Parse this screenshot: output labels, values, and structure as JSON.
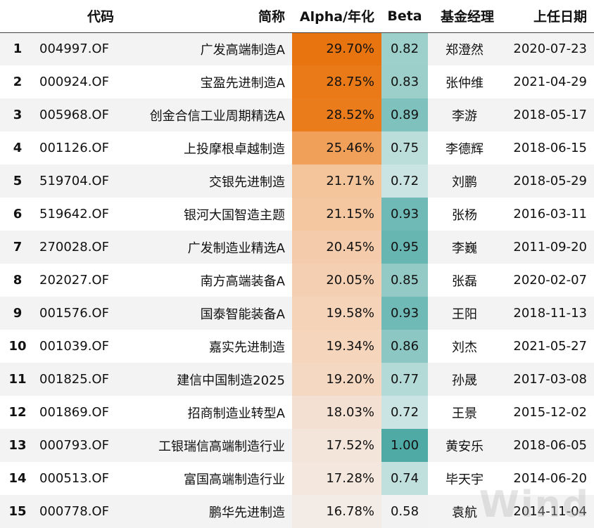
{
  "headers": {
    "code": "代码",
    "name": "简称",
    "alpha": "Alpha/年化",
    "beta": "Beta",
    "manager": "基金经理",
    "start_date": "上任日期"
  },
  "rows": [
    {
      "idx": "1",
      "code": "004997.OF",
      "name": "广发高端制造A",
      "alpha": "29.70%",
      "beta": "0.82",
      "manager": "郑澄然",
      "start_date": "2020-07-23",
      "alpha_color": "#e8740f",
      "beta_color": "#9dcfcb"
    },
    {
      "idx": "2",
      "code": "000924.OF",
      "name": "宝盈先进制造A",
      "alpha": "28.75%",
      "beta": "0.83",
      "manager": "张仲维",
      "start_date": "2021-04-29",
      "alpha_color": "#ea7a18",
      "beta_color": "#9ccfca"
    },
    {
      "idx": "3",
      "code": "005968.OF",
      "name": "创金合信工业周期精选A",
      "alpha": "28.52%",
      "beta": "0.89",
      "manager": "李游",
      "start_date": "2018-05-17",
      "alpha_color": "#ea7c1b",
      "beta_color": "#7fc1bd"
    },
    {
      "idx": "4",
      "code": "001126.OF",
      "name": "上投摩根卓越制造",
      "alpha": "25.46%",
      "beta": "0.75",
      "manager": "李德辉",
      "start_date": "2018-06-15",
      "alpha_color": "#f0a058",
      "beta_color": "#bcdedb"
    },
    {
      "idx": "5",
      "code": "519704.OF",
      "name": "交银先进制造",
      "alpha": "21.71%",
      "beta": "0.72",
      "manager": "刘鹏",
      "start_date": "2018-05-29",
      "alpha_color": "#f4c49b",
      "beta_color": "#c9e4e2"
    },
    {
      "idx": "6",
      "code": "519642.OF",
      "name": "银河大国智造主题",
      "alpha": "21.15%",
      "beta": "0.93",
      "manager": "张杨",
      "start_date": "2016-03-11",
      "alpha_color": "#f4c7a1",
      "beta_color": "#6fbab6"
    },
    {
      "idx": "7",
      "code": "270028.OF",
      "name": "广发制造业精选A",
      "alpha": "20.45%",
      "beta": "0.95",
      "manager": "李巍",
      "start_date": "2011-09-20",
      "alpha_color": "#f4ccab",
      "beta_color": "#67b6b2"
    },
    {
      "idx": "8",
      "code": "202027.OF",
      "name": "南方高端装备A",
      "alpha": "20.05%",
      "beta": "0.85",
      "manager": "张磊",
      "start_date": "2020-02-07",
      "alpha_color": "#f5cfb1",
      "beta_color": "#93cac6"
    },
    {
      "idx": "9",
      "code": "001576.OF",
      "name": "国泰智能装备A",
      "alpha": "19.58%",
      "beta": "0.93",
      "manager": "王阳",
      "start_date": "2018-11-13",
      "alpha_color": "#f5d3b9",
      "beta_color": "#6fbab6"
    },
    {
      "idx": "10",
      "code": "001039.OF",
      "name": "嘉实先进制造",
      "alpha": "19.34%",
      "beta": "0.86",
      "manager": "刘杰",
      "start_date": "2021-05-27",
      "alpha_color": "#f5d6bd",
      "beta_color": "#8dc7c3"
    },
    {
      "idx": "11",
      "code": "001825.OF",
      "name": "建信中国制造2025",
      "alpha": "19.20%",
      "beta": "0.77",
      "manager": "孙晟",
      "start_date": "2017-03-08",
      "alpha_color": "#f5d8c1",
      "beta_color": "#b4dad7"
    },
    {
      "idx": "12",
      "code": "001869.OF",
      "name": "招商制造业转型A",
      "alpha": "18.03%",
      "beta": "0.72",
      "manager": "王景",
      "start_date": "2015-12-02",
      "alpha_color": "#f4e0d2",
      "beta_color": "#c9e4e2"
    },
    {
      "idx": "13",
      "code": "000793.OF",
      "name": "工银瑞信高端制造行业",
      "alpha": "17.52%",
      "beta": "1.00",
      "manager": "黄安乐",
      "start_date": "2018-06-05",
      "alpha_color": "#f3e5da",
      "beta_color": "#4fa9a4"
    },
    {
      "idx": "14",
      "code": "000513.OF",
      "name": "富国高端制造行业",
      "alpha": "17.28%",
      "beta": "0.74",
      "manager": "毕天宇",
      "start_date": "2014-06-20",
      "alpha_color": "#f3e7de",
      "beta_color": "#c0e0dd"
    },
    {
      "idx": "15",
      "code": "000778.OF",
      "name": "鹏华先进制造",
      "alpha": "16.78%",
      "beta": "0.58",
      "manager": "袁航",
      "start_date": "2014-11-04",
      "alpha_color": "#f3ebe5",
      "beta_color": "#f2f2f2"
    }
  ],
  "watermark": "Wind"
}
